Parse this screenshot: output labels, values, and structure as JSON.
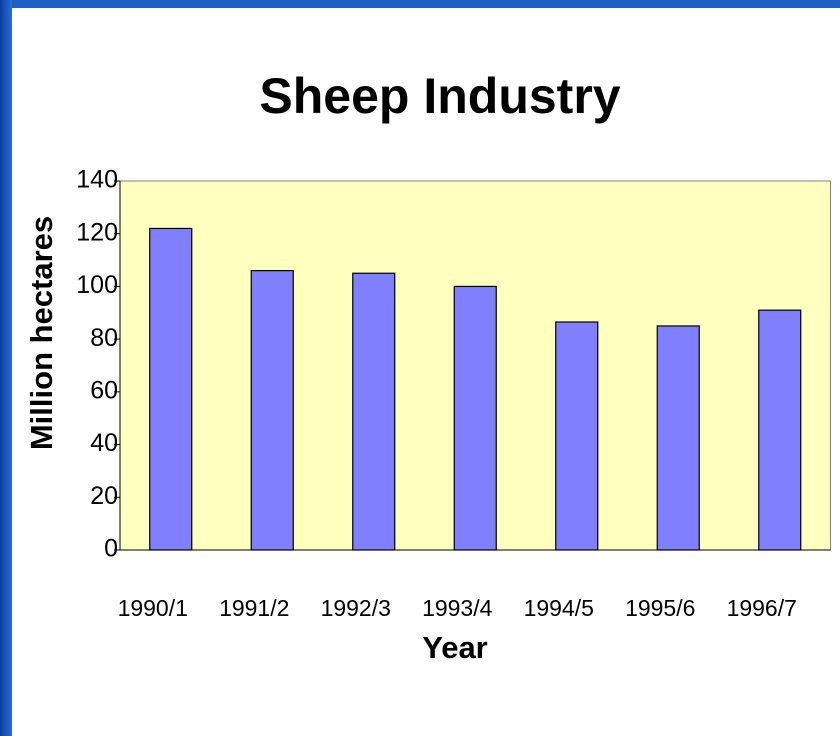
{
  "chart_data": {
    "type": "bar",
    "title": "Sheep Industry",
    "x_label": "Year",
    "y_label": "Million hectares",
    "categories": [
      "1990/1",
      "1991/2",
      "1992/3",
      "1993/4",
      "1994/5",
      "1995/6",
      "1996/7"
    ],
    "values": [
      122,
      106,
      105,
      100,
      86.5,
      85,
      91
    ],
    "color": "#8080ff",
    "plot_background": "#ffffc0",
    "ylim": [
      0,
      140
    ],
    "yticks": [
      0,
      20,
      40,
      60,
      80,
      100,
      120,
      140
    ],
    "grid": false
  }
}
